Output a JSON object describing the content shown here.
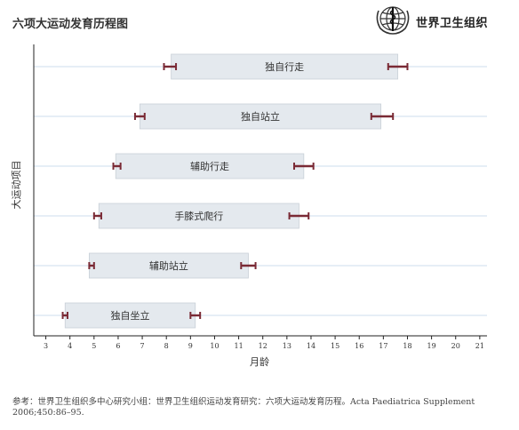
{
  "header": {
    "title": "六项大运动发育历程图",
    "organization": "世界卫生组织",
    "logo_icon": "who-emblem-icon"
  },
  "reference": "参考：世界卫生组织多中心研究小组：世界卫生组织运动发育研究：六项大运动发育历程。Acta Paediatrica Supplement 2006;450:86–95.",
  "colors": {
    "bar_fill": "#e4e9ee",
    "bar_stroke": "#c9d0d7",
    "whisker": "#7a2a35",
    "gridline": "#d6e4f0",
    "axis": "#222222"
  },
  "chart_data": {
    "type": "range-bar",
    "title": "六项大运动发育历程图",
    "xlabel": "月龄",
    "ylabel": "大运动项目",
    "xlim": [
      2.5,
      21.3
    ],
    "xticks": [
      3,
      4,
      5,
      6,
      7,
      8,
      9,
      10,
      11,
      12,
      13,
      14,
      15,
      16,
      17,
      18,
      19,
      20,
      21
    ],
    "grid": "horizontal",
    "items": [
      {
        "label": "独自行走",
        "start": 8.2,
        "end": 17.6,
        "start_err": [
          7.9,
          8.4
        ],
        "end_err": [
          17.2,
          18.0
        ]
      },
      {
        "label": "独自站立",
        "start": 6.9,
        "end": 16.9,
        "start_err": [
          6.7,
          7.1
        ],
        "end_err": [
          16.5,
          17.4
        ]
      },
      {
        "label": "辅助行走",
        "start": 5.9,
        "end": 13.7,
        "start_err": [
          5.8,
          6.1
        ],
        "end_err": [
          13.3,
          14.1
        ]
      },
      {
        "label": "手膝式爬行",
        "start": 5.2,
        "end": 13.5,
        "start_err": [
          5.0,
          5.3
        ],
        "end_err": [
          13.1,
          13.9
        ]
      },
      {
        "label": "辅助站立",
        "start": 4.8,
        "end": 11.4,
        "start_err": [
          4.8,
          5.0
        ],
        "end_err": [
          11.1,
          11.7
        ]
      },
      {
        "label": "独自坐立",
        "start": 3.8,
        "end": 9.2,
        "start_err": [
          3.7,
          3.9
        ],
        "end_err": [
          9.0,
          9.4
        ]
      }
    ]
  }
}
